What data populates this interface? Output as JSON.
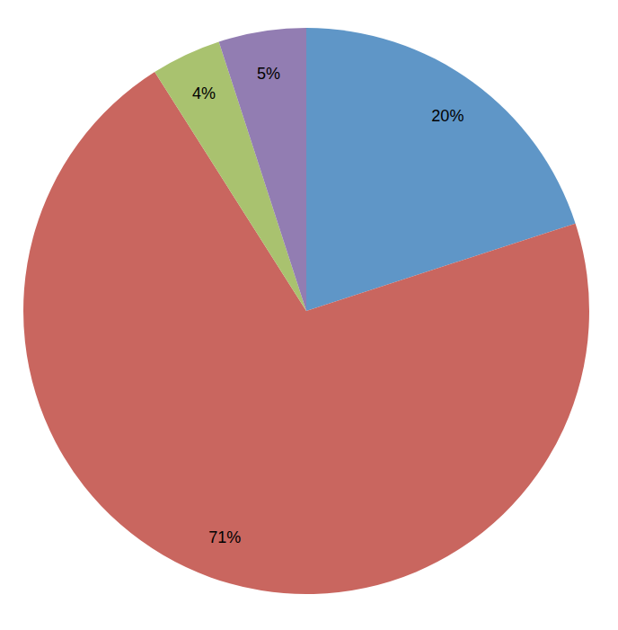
{
  "chart_data": {
    "type": "pie",
    "values": [
      20,
      71,
      4,
      5
    ],
    "value_labels": [
      "20%",
      "71%",
      "4%",
      "5%"
    ],
    "colors": [
      "#5f96c7",
      "#c9665f",
      "#a9c26f",
      "#927db2"
    ],
    "data_labels": true
  }
}
